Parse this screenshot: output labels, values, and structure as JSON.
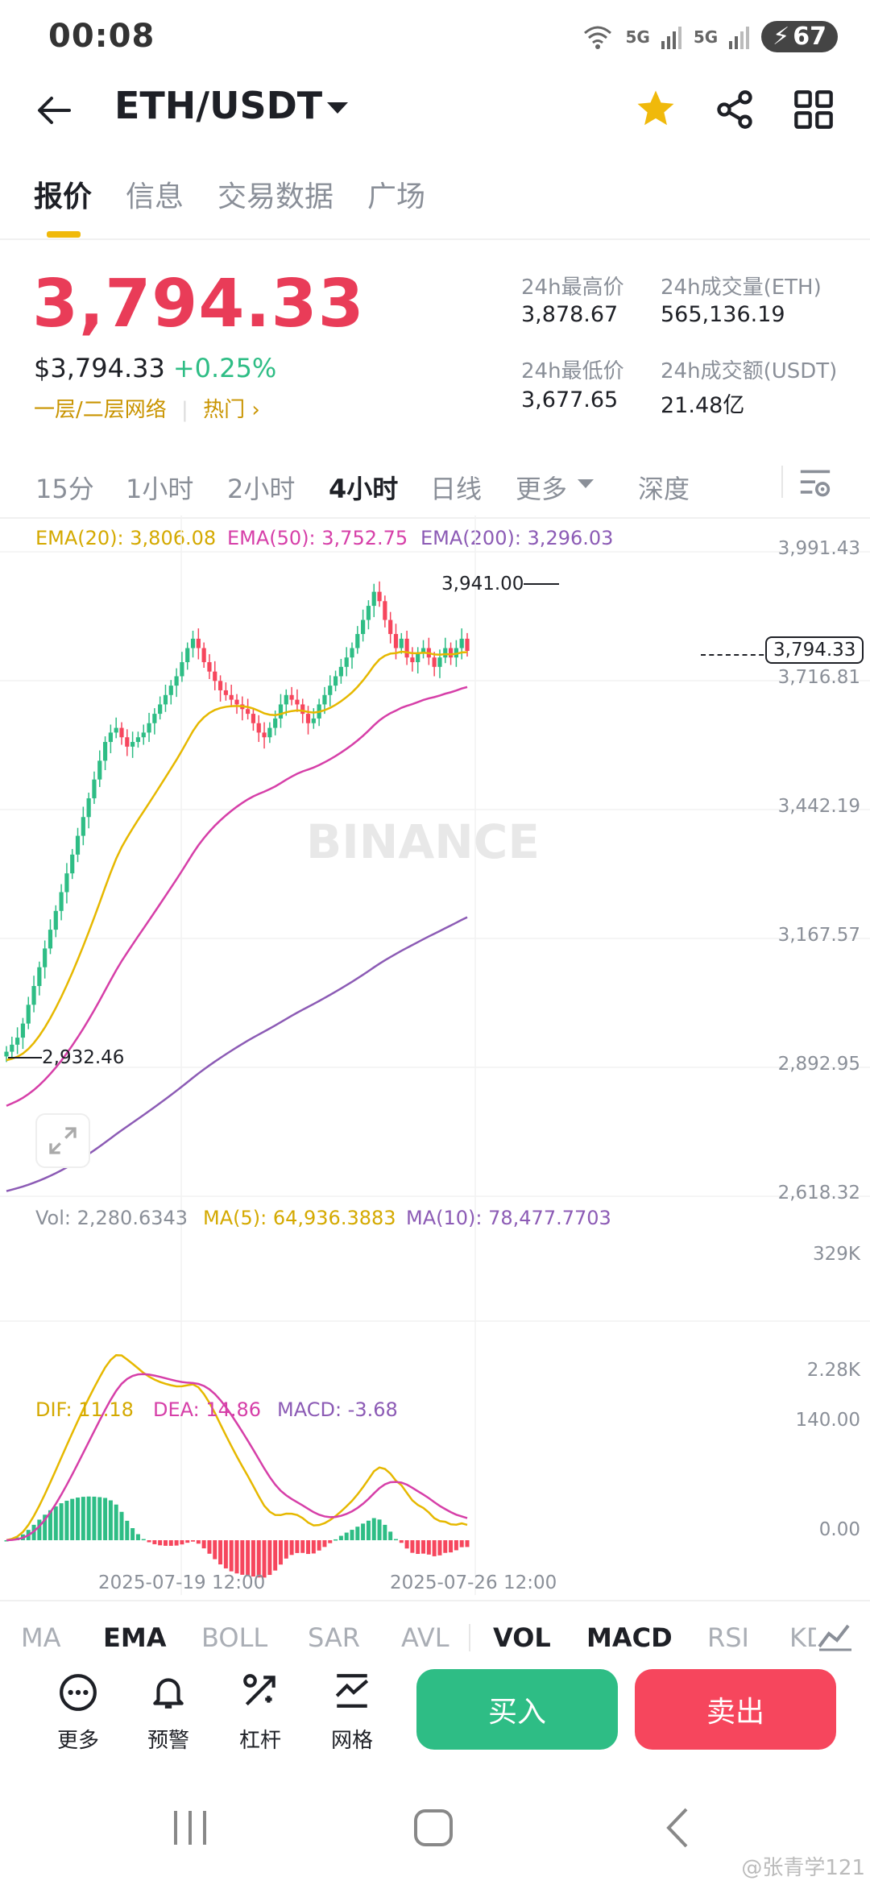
{
  "status": {
    "time": "00:08",
    "signal1": "5G",
    "signal2": "5G",
    "battery": "67"
  },
  "header": {
    "pair": "ETH/USDT"
  },
  "tabs": [
    "报价",
    "信息",
    "交易数据",
    "广场"
  ],
  "price": {
    "last": "3,794.33",
    "usd": "$3,794.33",
    "change": "+0.25%",
    "network": "一层/二层网络",
    "tag": "热门"
  },
  "stats": {
    "high_label": "24h最高价",
    "high": "3,878.67",
    "low_label": "24h最低价",
    "low": "3,677.65",
    "vol_label": "24h成交量(ETH)",
    "vol": "565,136.19",
    "amt_label": "24h成交额(USDT)",
    "amt": "21.48亿"
  },
  "timeframes": [
    "15分",
    "1小时",
    "2小时",
    "4小时",
    "日线",
    "更多",
    "深度"
  ],
  "ema_legend": {
    "ema20": "EMA(20): 3,806.08",
    "ema50": "EMA(50): 3,752.75",
    "ema200": "EMA(200): 3,296.03"
  },
  "price_axis": [
    "3,991.43",
    "3,716.81",
    "3,442.19",
    "3,167.57",
    "2,892.95",
    "2,618.32"
  ],
  "current_price_tag": "3,794.33",
  "high_marker": "3,941.00",
  "low_marker": "2,932.46",
  "watermark": "BINANCE",
  "vol_legend": {
    "vol": "Vol: 2,280.6343",
    "ma5": "MA(5): 64,936.3883",
    "ma10": "MA(10): 78,477.7703"
  },
  "vol_axis": [
    "329K",
    "2.28K"
  ],
  "macd_legend": {
    "dif": "DIF: 11.18",
    "dea": "DEA: 14.86",
    "macd": "MACD: -3.68"
  },
  "macd_axis": [
    "140.00",
    "0.00"
  ],
  "date_axis": [
    "2025-07-19 12:00",
    "2025-07-26 12:00"
  ],
  "indicators": [
    "MA",
    "EMA",
    "BOLL",
    "SAR",
    "AVL",
    "VOL",
    "MACD",
    "RSI",
    "KD"
  ],
  "tools": [
    "更多",
    "预警",
    "杠杆",
    "网格"
  ],
  "buy_label": "买入",
  "sell_label": "卖出",
  "corner_watermark": "@张青学121",
  "colors": {
    "up": "#2ebd85",
    "down": "#f6465d",
    "accent": "#f0b90b",
    "ema20": "#e6b800",
    "ema50": "#d63fa8",
    "ema200": "#8c5bb5"
  },
  "chart_data": {
    "type": "candlestick",
    "interval": "4小时",
    "ylim": [
      2618.32,
      3991.43
    ],
    "close_series": [
      2940,
      2955,
      2970,
      3000,
      3040,
      3080,
      3120,
      3160,
      3200,
      3240,
      3280,
      3320,
      3360,
      3400,
      3440,
      3480,
      3520,
      3560,
      3600,
      3620,
      3630,
      3610,
      3590,
      3600,
      3610,
      3620,
      3640,
      3660,
      3680,
      3700,
      3720,
      3740,
      3770,
      3800,
      3820,
      3800,
      3770,
      3750,
      3730,
      3710,
      3700,
      3690,
      3680,
      3670,
      3660,
      3640,
      3620,
      3610,
      3630,
      3650,
      3680,
      3700,
      3690,
      3680,
      3660,
      3640,
      3650,
      3680,
      3700,
      3720,
      3740,
      3760,
      3780,
      3800,
      3830,
      3860,
      3890,
      3920,
      3900,
      3860,
      3830,
      3800,
      3820,
      3780,
      3770,
      3790,
      3800,
      3780,
      3760,
      3780,
      3800,
      3780,
      3800,
      3820,
      3794
    ]
  }
}
